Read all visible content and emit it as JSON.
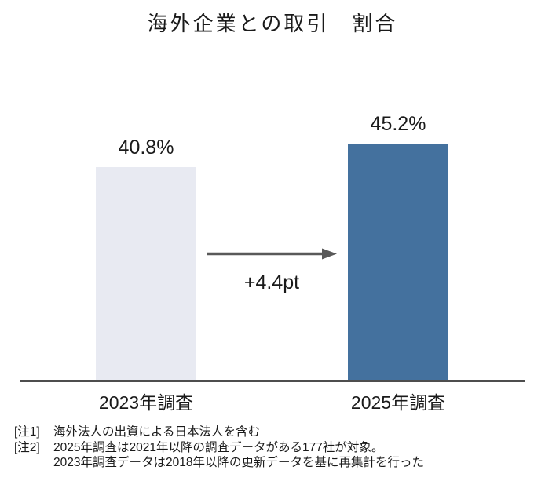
{
  "chart_data": {
    "type": "bar",
    "title": "海外企業との取引　割合",
    "categories": [
      "2023年調査",
      "2025年調査"
    ],
    "values": [
      40.8,
      45.2
    ],
    "value_labels": [
      "40.8%",
      "45.2%"
    ],
    "unit": "%",
    "ylim": [
      0,
      50
    ],
    "grid": false,
    "legend": false,
    "delta_annotation": "+4.4pt",
    "bar_colors": [
      "#e8eaf2",
      "#44719e"
    ],
    "axis_color": "#4d4d4d",
    "arrow_color": "#595959"
  },
  "notes": {
    "note1_label": "[注1]",
    "note1_text": "海外法人の出資による日本法人を含む",
    "note2_label": "[注2]",
    "note2_line1": "2025年調査は2021年以降の調査データがある177社が対象。",
    "note2_line2": "2023年調査データは2018年以降の更新データを基に再集計を行った"
  }
}
